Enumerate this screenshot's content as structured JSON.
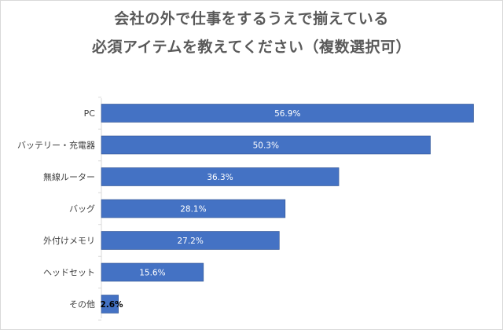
{
  "chart_data": {
    "type": "bar",
    "orientation": "horizontal",
    "title_lines": [
      "会社の外で仕事をするうえで揃えている",
      "必須アイテムを教えてください（複数選択可）"
    ],
    "categories": [
      "PC",
      "バッテリー・充電器",
      "無線ルーター",
      "バッグ",
      "外付けメモリ",
      "ヘッドセット",
      "その他"
    ],
    "values": [
      56.9,
      50.3,
      36.3,
      28.1,
      27.2,
      15.6,
      2.6
    ],
    "value_labels": [
      "56.9%",
      "50.3%",
      "36.3%",
      "28.1%",
      "27.2%",
      "15.6%",
      "2.6%"
    ],
    "xlabel": "",
    "ylabel": "",
    "xlim": [
      0,
      60
    ],
    "grid": false,
    "legend": "none",
    "colors": {
      "bar": "#4472c4",
      "bar_edge": "#2f528f",
      "axis": "#d9d9d9",
      "title": "#595959"
    }
  }
}
